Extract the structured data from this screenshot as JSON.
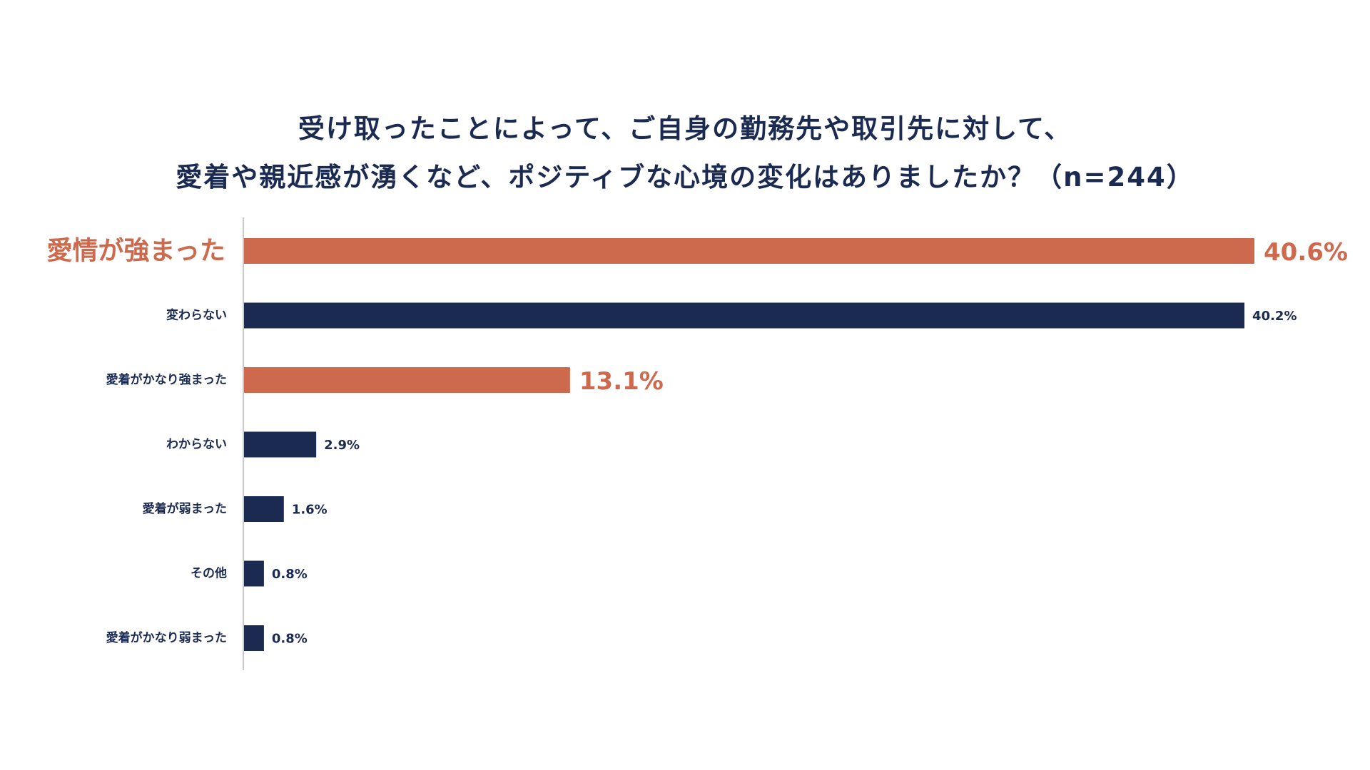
{
  "chart_data": {
    "type": "bar",
    "orientation": "horizontal",
    "title": [
      "受け取ったことによって、ご自身の勤務先や取引先に対して、",
      "愛着や親近感が湧くなど、ポジティブな心境の変化はありましたか？（n=244）"
    ],
    "categories": [
      "愛情が強まった",
      "変わらない",
      "愛着がかなり強まった",
      "わからない",
      "愛着が弱まった",
      "その他",
      "愛着がかなり弱まった"
    ],
    "values": [
      40.6,
      40.2,
      13.1,
      2.9,
      1.6,
      0.8,
      0.8
    ],
    "value_labels": [
      "40.6%",
      "40.2%",
      "13.1%",
      "2.9%",
      "1.6%",
      "0.8%",
      "0.8%"
    ],
    "highlighted": [
      true,
      false,
      true,
      false,
      false,
      false,
      false
    ],
    "unit": "%",
    "xlim": [
      0,
      40.6
    ],
    "grid": false,
    "legend": "none",
    "colors": {
      "highlight": "#cd6a4e",
      "normal": "#1b2a50",
      "axis": "#c8c8c8",
      "title": "#1b2a50"
    }
  }
}
